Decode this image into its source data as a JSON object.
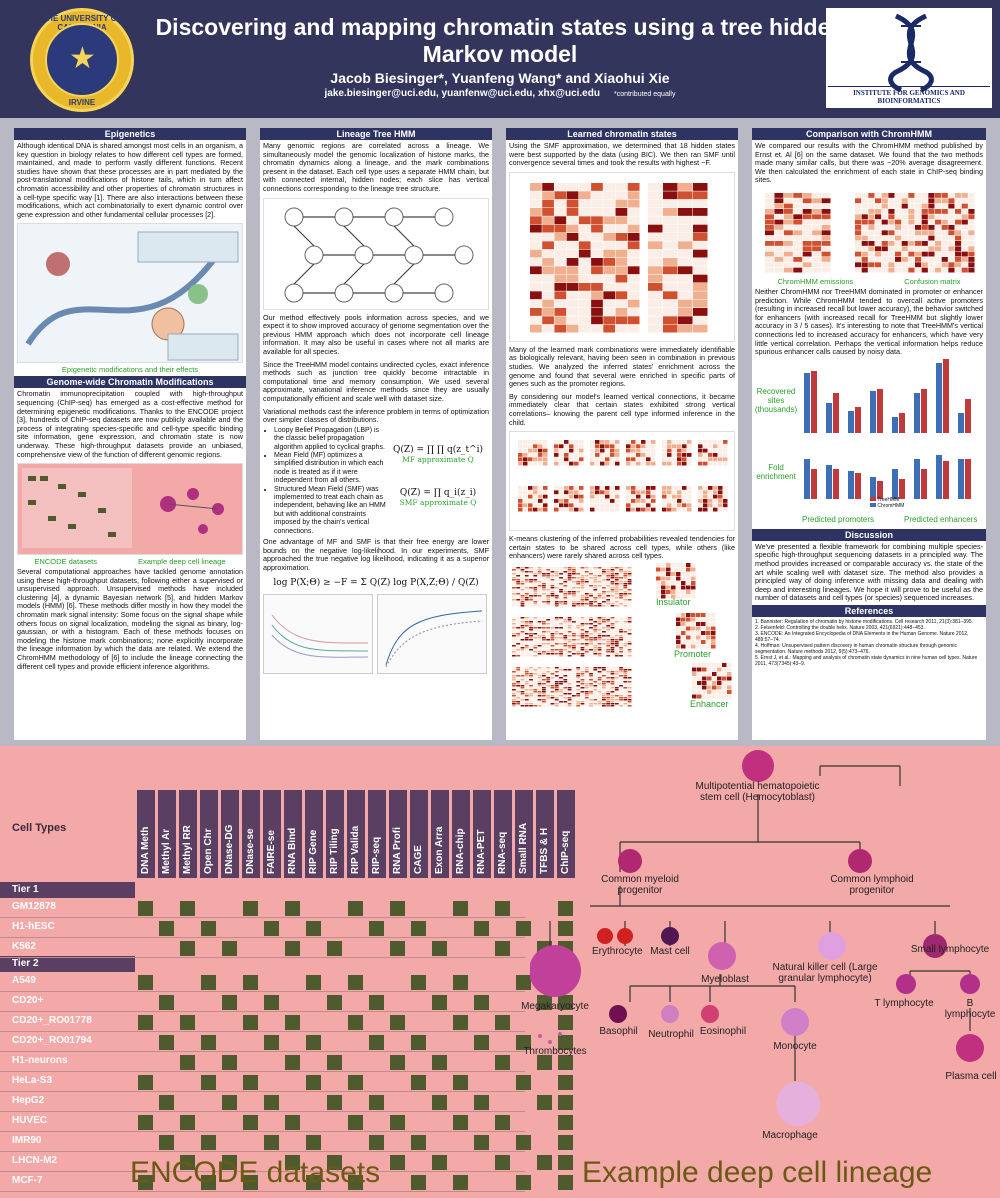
{
  "header": {
    "seal_top": "THE UNIVERSITY OF CALIFORNIA",
    "seal_bottom": "IRVINE",
    "title": "Discovering and mapping chromatin states using a tree hidden Markov model",
    "authors": "Jacob Biesinger*, Yuanfeng Wang* and Xiaohui Xie",
    "emails": "jake.biesinger@uci.edu, yuanfenw@uci.edu, xhx@uci.edu",
    "note": "*contributed equally",
    "institute": "INSTITUTE FOR GENOMICS AND BIOINFORMATICS"
  },
  "col1": {
    "head1": "Epigenetics",
    "p1": "Although identical DNA is shared amongst most cells in an organism, a key question in biology relates to how different cell types are formed, maintained, and made to perform vastly different functions. Recent studies have shown that these processes are in part mediated by the post-translational modifications of histone tails, which in turn affect chromatin accessibility and other properties of chromatin structures in a cell-type specific way [1]. There are also interactions between these modifications, which act combinatorially to exert dynamic control over gene expression and other fundamental cellular processes [2].",
    "fig1_cap": "Epigenetic modifications and their effects",
    "head2": "Genome-wide Chromatin Modifications",
    "p2": "Chromatin immunoprecipitation coupled with high-throughput sequencing (ChIP-seq) has emerged as a cost-effective method for determining epigenetic modifications. Thanks to the ENCODE project [3], hundreds of ChIP-seq datasets are now publicly available and the process of integrating species-specific and cell-type specific binding site information, gene expression, and chromatin state is now underway. These high-throughput datasets provide an unbiased, comprehensive view of the function of different genomic regions.",
    "cap_encode": "ENCODE datasets",
    "cap_lineage": "Example deep cell lineage",
    "p3": "Several computational approaches have tackled genome annotation using these high-throughput datasets, following either a supervised or unsupervised approach. Unsupervised methods have included clustering [4], a dynamic Bayesian network [5], and hidden Markov models (HMM) [6]. These methods differ mostly in how they model the chromatin mark signal intensity: Some focus on the signal shape while others focus on signal localization, modeling the signal as binary, log-gaussian, or with a histogram. Each of these methods focuses on modeling the histone mark combinations; none explicitly incorporate the lineage information by which the data are related. We extend the ChromHMM methodology of [6] to include the lineage connecting the different cell types and provide efficient inference algorithms."
  },
  "col2": {
    "head": "Lineage Tree HMM",
    "p1": "Many genomic regions are correlated across a lineage. We simultaneously model the genomic localization of histone marks, the chromatin dynamics along a lineage, and the mark combinations present in the dataset. Each cell type uses a separate HMM chain, but with connected internal, hidden nodes; each slice has vertical connections corresponding to the lineage tree structure.",
    "p2": "Our method effectively pools information across species, and we expect it to show improved accuracy of genome segmentation over the previous HMM approach which does not incorporate cell lineage information. It may also be useful in cases where not all marks are available for all species.",
    "p3": "Since the TreeHMM model contains undirected cycles, exact inference methods such as junction tree quickly become intractable in computational time and memory consumption. We used several approximate, variational inference methods since they are usually computationally efficient and scale well with dataset size.",
    "p4": "Variational methods cast the inference problem in terms of optimization over simpler classes of distributions.",
    "b1": "Loopy Belief Propagation (LBP) is the classic belief propagation algorithm applied to cyclical graphs.",
    "b2": "Mean Field (MF) optimizes a simplified distribution in which each node is treated as if it were independent from all others.",
    "b3": "Structured Mean Field (SMF) was implemented to treat each chain as independent, behaving like an HMM but with additional constraints imposed by the chain's vertical connections.",
    "mf_cap": "MF approximate Q",
    "smf_cap": "SMF approximate Q",
    "p5": "One advantage of MF and SMF is that their free energy are lower bounds on the negative log-likelihood. In our experiments, SMF approached the true negative log likelihood, indicating it as a superior approximation.",
    "eq_mf": "Q(Z) = ∏ ∏ q(z_t^i)",
    "eq_smf": "Q(Z) = ∏ q_i(z_i)",
    "eq_main": "log P(X;Θ) ≥ −F = Σ Q(Z) log P(X,Z;Θ) / Q(Z)"
  },
  "col3": {
    "head": "Learned chromatin states",
    "p1": "Using the SMF approximation, we determined that 18 hidden states were best supported by the data (using BIC). We then ran SMF until convergence several times and took the results with highest −F.",
    "p2": "Many of the learned mark combinations were immediately identifiable as biologically relevant, having been seen in combination in previous studies. We analyzed the inferred states' enrichment across the genome and found that several were enriched in specific parts of genes such as the promoter regions.",
    "p3": "By considering our model's learned vertical connections, it became immediately clear that certain states exhibited strong vertical correlations– knowing the parent cell type informed inference in the child.",
    "p4": "K-means clustering of the inferred probabilities revealed tendencies for certain states to be shared across cell types, while others (like enhancers) were rarely shared across cell types.",
    "lbl_insulator": "Insulator",
    "lbl_promoter": "Promoter",
    "lbl_enhancer": "Enhancer"
  },
  "col4": {
    "head1": "Comparison with ChromHMM",
    "p1": "We compared our results with the ChromHMM method published by Ernst et. Al [6] on the same dataset. We found that the two methods made many similar calls, but there was ~20% average disagreement. We then calculated the enrichment of each state in ChIP-seq binding sites.",
    "cap_emissions": "ChromHMM emissions",
    "cap_confusion": "Confusion matrix",
    "p2": "Neither ChromHMM nor TreeHMM dominated in promoter or enhancer prediction. While ChromHMM tended to overcall active promoters (resulting in increased recall but lower accuracy), the behavior switched for enhancers (with increased recall for TreeHMM but slightly lower accuracy in 3 / 5 cases). It's interesting to note that TreeHMM's vertical connections led to increased accuracy for enhancers, which have very little vertical correlation. Perhaps the vertical information helps reduce spurious enhancer calls caused by noisy data.",
    "lbl_recovered": "Recovered sites (thousands)",
    "lbl_fold": "Fold enrichment",
    "cap_promoters": "Predicted promoters",
    "cap_enhancers": "Predicted enhancers",
    "legend_tree": "TreeHMM",
    "legend_chrom": "ChromHMM",
    "head2": "Discussion",
    "p3": "We've presented a flexible framework for combining multiple species-specific high-throughput sequencing datasets in a principled way. The method provides increased or comparable accuracy vs. the state of the art while scaling well with dataset size. The method also provides a principled way of doing inference with missing data and dealing with deep and interesting lineages. We hope it will prove to be useful as the number of datasets and cell types (or species) sequenced increases.",
    "head3": "References",
    "refs": [
      "1. Bannister: Regulation of chromatin by histone modifications. Cell research 2011, 21(3):381–395.",
      "2. Felsenfeld: Controlling the double helix. Nature 2003, 421(6921):448–453.",
      "3. ENCODE: An Integrated Encyclopedia of DNA Elements in the Human Genome. Nature 2012, 489:57–74.",
      "4. Hoffman: Unsupervised pattern discovery in human chromatin structure through genomic segmentation. Nature methods 2012, 9(5):473–476.",
      "5. Ernst J, et al.: Mapping and analysis of chromatin state dynamics in nine human cell types. Nature 2011, 473(7345):43–9."
    ]
  },
  "lower": {
    "columns": [
      "DNA Meth",
      "Methyl Ar",
      "Methyl RR",
      "Open Chr",
      "DNase-DG",
      "DNase-se",
      "FAIRE-se",
      "RNA Bind",
      "RIP Gene",
      "RIP Tiling",
      "RIP Valida",
      "RIP-seq",
      "RNA Profi",
      "CAGE",
      "Exon Arra",
      "RNA-chip",
      "RNA-PET",
      "RNA-seq",
      "Small RNA",
      "TFBS & H",
      "ChIP-seq"
    ],
    "cell_types_label": "Cell Types",
    "tier1": "Tier 1",
    "tier2": "Tier 2",
    "rows": [
      "GM12878",
      "H1-hESC",
      "K562",
      "A549",
      "CD20+",
      "CD20+_RO01778",
      "CD20+_RO01794",
      "H1-neurons",
      "HeLa-S3",
      "HepG2",
      "HUVEC",
      "IMR90",
      "LHCN-M2",
      "MCF-7"
    ],
    "caption_left": "ENCODE datasets",
    "caption_right": "Example deep cell lineage",
    "lineage": {
      "root": "Multipotential hematopoietic stem cell (Hemocytoblast)",
      "myeloid": "Common myeloid progenitor",
      "lymphoid": "Common lymphoid progenitor",
      "ery": "Erythrocyte",
      "mast": "Mast cell",
      "myeloblast": "Myeloblast",
      "nk": "Natural killer cell (Large granular lymphocyte)",
      "small": "Small lymphocyte",
      "mega": "Megakaryocyte",
      "thromb": "Thrombocytes",
      "baso": "Basophil",
      "neut": "Neutrophil",
      "eos": "Eosinophil",
      "mono": "Monocyte",
      "tl": "T lymphocyte",
      "bl": "B lymphocyte",
      "plasma": "Plasma cell",
      "macro": "Macrophage"
    }
  },
  "colors": {
    "header_bg": "#33355c",
    "section_head": "#2d3464",
    "caption_green": "#2aa02a",
    "cell_olive": "#505a2f",
    "lower_bg": "#f4a9a9",
    "tree_bar": "#c0393b",
    "chrom_bar": "#3d6fb6"
  }
}
